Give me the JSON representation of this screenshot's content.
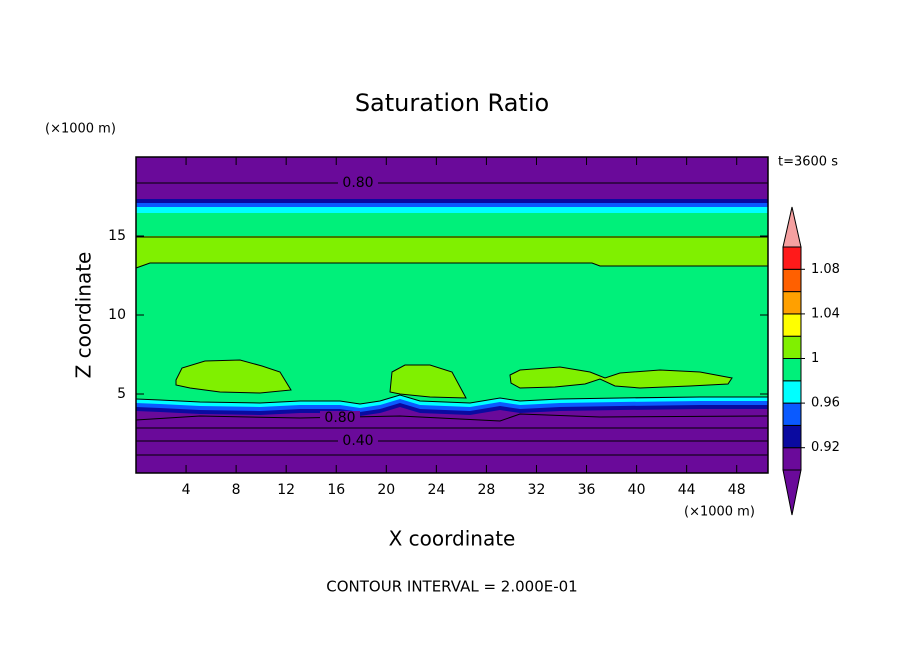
{
  "chart_data": {
    "type": "contour",
    "title": "Saturation Ratio",
    "x_label": "X coordinate",
    "y_label": "Z coordinate",
    "x_unit": "(×1000 m)",
    "y_unit": "(×1000 m)",
    "time_label": "t=3600 s",
    "footer": "CONTOUR INTERVAL = 2.000E-01",
    "xlim": [
      0,
      50.5
    ],
    "xticks": [
      4,
      8,
      12,
      16,
      20,
      24,
      28,
      32,
      36,
      40,
      44,
      48
    ],
    "ylim": [
      0,
      20
    ],
    "yticks": [
      5,
      10,
      15
    ],
    "colorbar_lim": [
      0.9,
      1.1
    ],
    "colorbar_ticks": [
      0.92,
      0.96,
      1,
      1.04,
      1.08
    ],
    "colors": [
      "#6a0a9a",
      "#6a0a9a",
      "#0a0aa0",
      "#0a5aff",
      "#00ffff",
      "#00f07a",
      "#80f000",
      "#ffff00",
      "#ffa000",
      "#ff6000",
      "#ff1a1a",
      "#f5a0a0"
    ],
    "contour_labels": [
      {
        "value": 0.8,
        "label": "0.80"
      },
      {
        "value": 0.8,
        "label": "0.80"
      },
      {
        "value": 0.4,
        "label": "0.40"
      }
    ]
  }
}
